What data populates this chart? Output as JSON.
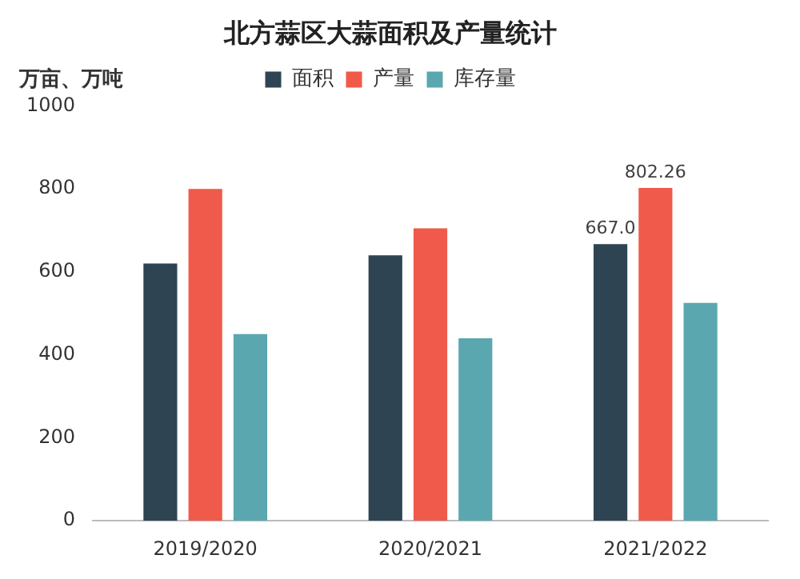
{
  "chart_data": {
    "type": "bar",
    "title": "北方蒜区大蒜面积及产量统计",
    "ylabel": "万亩、万吨",
    "categories": [
      "2019/2020",
      "2020/2021",
      "2021/2022"
    ],
    "series": [
      {
        "name": "面积",
        "color": "#2e4452",
        "values": [
          620,
          640,
          667.0
        ],
        "value_labels": [
          null,
          null,
          "667.0"
        ]
      },
      {
        "name": "产量",
        "color": "#f05a4a",
        "values": [
          800,
          705,
          802.26
        ],
        "value_labels": [
          null,
          null,
          "802.26"
        ]
      },
      {
        "name": "库存量",
        "color": "#5ba7b0",
        "values": [
          450,
          440,
          525
        ]
      }
    ],
    "ylim": [
      0,
      1000
    ],
    "yticks": [
      0,
      200,
      400,
      600,
      800,
      1000
    ],
    "grid": false,
    "legend": "top"
  }
}
